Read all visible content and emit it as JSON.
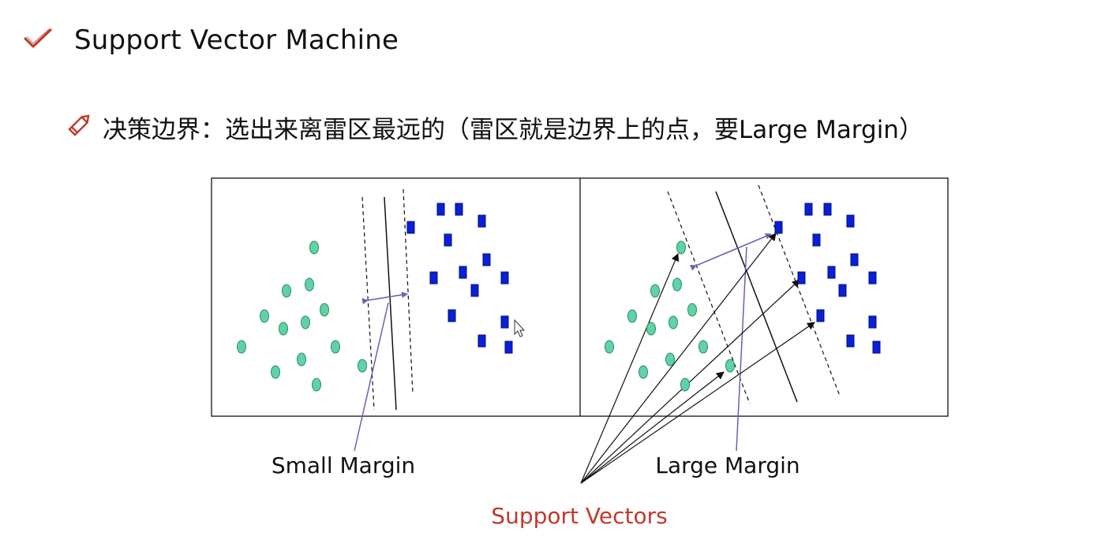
{
  "slide": {
    "title": "Support Vector Machine",
    "title_icon": "checkmark-icon",
    "subtitle": "决策边界：选出来离雷区最远的（雷区就是边界上的点，要Large Margin）",
    "subtitle_icon": "pencil-icon",
    "accent_color": "#c0392b"
  },
  "figure": {
    "left_caption": "Small Margin",
    "right_caption": "Large Margin",
    "bottom_caption": "Support Vectors",
    "bottom_caption_color": "#c0392b",
    "circle_color": "#5fd3a6",
    "square_color": "#0a1fd6",
    "arrow_color": "#6b5fb3"
  }
}
